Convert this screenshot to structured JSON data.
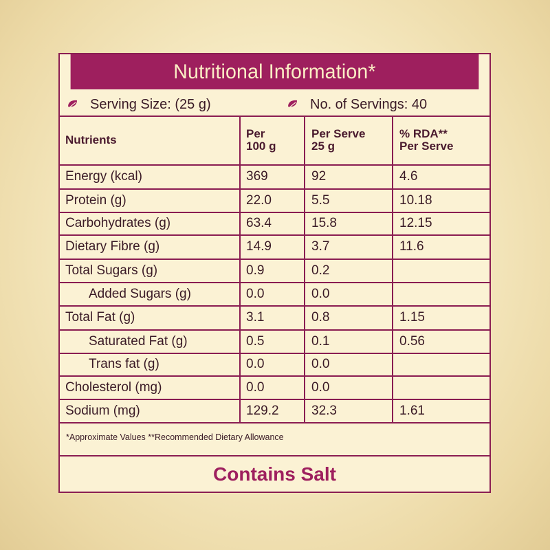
{
  "title": "Nutritional Information*",
  "serving_size": "Serving Size: (25 g)",
  "servings": "No. of Servings: 40",
  "headers": {
    "nutrients": "Nutrients",
    "per100_line1": "Per",
    "per100_line2": "100 g",
    "perserve_line1": "Per Serve",
    "perserve_line2": "25 g",
    "rda_line1": "% RDA**",
    "rda_line2": "Per Serve"
  },
  "rows": [
    {
      "name": "Energy (kcal)",
      "per100": "369",
      "perserve": "92",
      "rda": "4.6",
      "indent": false
    },
    {
      "name": "Protein (g)",
      "per100": "22.0",
      "perserve": "5.5",
      "rda": "10.18",
      "indent": false
    },
    {
      "name": "Carbohydrates (g)",
      "per100": "63.4",
      "perserve": "15.8",
      "rda": "12.15",
      "indent": false
    },
    {
      "name": "Dietary Fibre (g)",
      "per100": "14.9",
      "perserve": "3.7",
      "rda": "11.6",
      "indent": false
    },
    {
      "name": "Total Sugars (g)",
      "per100": "0.9",
      "perserve": "0.2",
      "rda": "",
      "indent": false
    },
    {
      "name": "Added Sugars (g)",
      "per100": "0.0",
      "perserve": "0.0",
      "rda": "",
      "indent": true
    },
    {
      "name": "Total Fat (g)",
      "per100": "3.1",
      "perserve": "0.8",
      "rda": "1.15",
      "indent": false
    },
    {
      "name": "Saturated Fat (g)",
      "per100": "0.5",
      "perserve": "0.1",
      "rda": "0.56",
      "indent": true
    },
    {
      "name": "Trans fat (g)",
      "per100": "0.0",
      "perserve": "0.0",
      "rda": "",
      "indent": true
    },
    {
      "name": "Cholesterol (mg)",
      "per100": "0.0",
      "perserve": "0.0",
      "rda": "",
      "indent": false
    },
    {
      "name": "Sodium (mg)",
      "per100": "129.2",
      "perserve": "32.3",
      "rda": "1.61",
      "indent": false
    }
  ],
  "footnote": "*Approximate Values  **Recommended Dietary Allowance",
  "contains": "Contains Salt",
  "colors": {
    "accent": "#9e1f5e",
    "border": "#8a1d52",
    "panel_bg": "#fbf2d4",
    "header_text": "#fbeec5",
    "text": "#3a1a26"
  }
}
